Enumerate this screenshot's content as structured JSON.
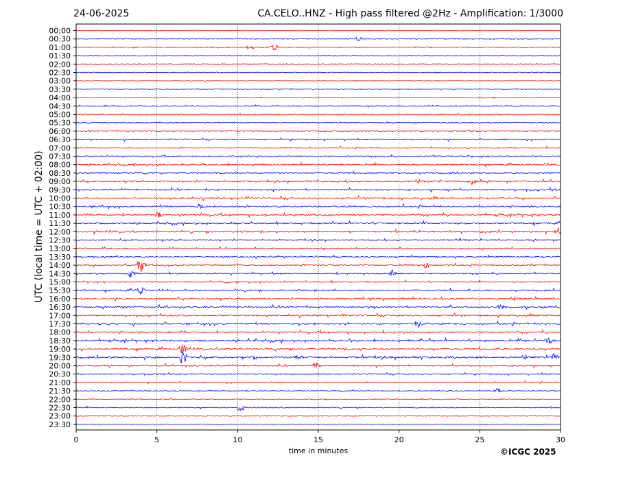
{
  "header": {
    "date": "24-06-2025",
    "title": "CA.CELO..HNZ - High pass filtered @2Hz - Amplification: 1/3000"
  },
  "footer": {
    "copyright": "©ICGC 2025"
  },
  "chart_data": {
    "type": "line",
    "title": "CA.CELO..HNZ - High pass filtered @2Hz - Amplification: 1/3000",
    "xlabel": "time in minutes",
    "ylabel": "UTC (local time = UTC + 02:00)",
    "xlim": [
      0,
      30
    ],
    "xticks": [
      0,
      5,
      10,
      15,
      20,
      25,
      30
    ],
    "grid": "vertical dotted lines at 5-minute ticks",
    "colors": {
      "odd_rows": "#ff0000",
      "even_rows": "#0000ff"
    },
    "rows": [
      "00:00",
      "00:30",
      "01:00",
      "01:30",
      "02:00",
      "02:30",
      "03:00",
      "03:30",
      "04:00",
      "04:30",
      "05:00",
      "05:30",
      "06:00",
      "06:30",
      "07:00",
      "07:30",
      "08:00",
      "08:30",
      "09:00",
      "09:30",
      "10:00",
      "10:30",
      "11:00",
      "11:30",
      "12:00",
      "12:30",
      "13:00",
      "13:30",
      "14:00",
      "14:30",
      "15:00",
      "15:30",
      "16:00",
      "16:30",
      "17:00",
      "17:30",
      "18:00",
      "18:30",
      "19:00",
      "19:30",
      "20:00",
      "20:30",
      "21:00",
      "21:30",
      "22:00",
      "22:30",
      "23:00",
      "23:30"
    ],
    "activity": [
      0.1,
      0.15,
      0.35,
      0.2,
      0.25,
      0.2,
      0.15,
      0.3,
      0.3,
      0.35,
      0.35,
      0.35,
      0.45,
      0.55,
      0.5,
      0.6,
      0.75,
      0.6,
      0.8,
      0.85,
      0.8,
      0.85,
      0.85,
      0.8,
      0.9,
      0.7,
      0.6,
      0.6,
      0.65,
      0.65,
      0.6,
      0.75,
      0.8,
      0.85,
      0.8,
      0.85,
      0.85,
      0.9,
      0.85,
      1.0,
      0.8,
      0.5,
      0.5,
      0.4,
      0.3,
      0.4,
      0.2,
      0.05
    ],
    "events": [
      {
        "row": "01:00",
        "minute": 12.3,
        "amplitude": 6
      },
      {
        "row": "01:00",
        "minute": 10.8,
        "amplitude": 4
      },
      {
        "row": "00:30",
        "minute": 17.5,
        "amplitude": 4
      },
      {
        "row": "14:00",
        "minute": 4.0,
        "amplitude": 14
      },
      {
        "row": "14:00",
        "minute": 21.7,
        "amplitude": 6
      },
      {
        "row": "14:30",
        "minute": 3.4,
        "amplitude": 6
      },
      {
        "row": "14:30",
        "minute": 19.6,
        "amplitude": 6
      },
      {
        "row": "15:30",
        "minute": 4.0,
        "amplitude": 8
      },
      {
        "row": "16:30",
        "minute": 26.3,
        "amplitude": 6
      },
      {
        "row": "17:30",
        "minute": 21.2,
        "amplitude": 6
      },
      {
        "row": "18:30",
        "minute": 29.3,
        "amplitude": 5
      },
      {
        "row": "19:00",
        "minute": 6.6,
        "amplitude": 10
      },
      {
        "row": "19:30",
        "minute": 6.6,
        "amplitude": 12
      },
      {
        "row": "19:30",
        "minute": 11.0,
        "amplitude": 6
      },
      {
        "row": "19:30",
        "minute": 13.8,
        "amplitude": 5
      },
      {
        "row": "19:30",
        "minute": 29.6,
        "amplitude": 6
      },
      {
        "row": "20:00",
        "minute": 14.8,
        "amplitude": 6
      },
      {
        "row": "12:00",
        "minute": 29.9,
        "amplitude": 8
      },
      {
        "row": "11:00",
        "minute": 5.1,
        "amplitude": 5
      },
      {
        "row": "09:00",
        "minute": 24.5,
        "amplitude": 5
      },
      {
        "row": "22:30",
        "minute": 10.2,
        "amplitude": 8
      },
      {
        "row": "21:30",
        "minute": 26.1,
        "amplitude": 5
      },
      {
        "row": "10:30",
        "minute": 7.7,
        "amplitude": 5
      }
    ]
  }
}
